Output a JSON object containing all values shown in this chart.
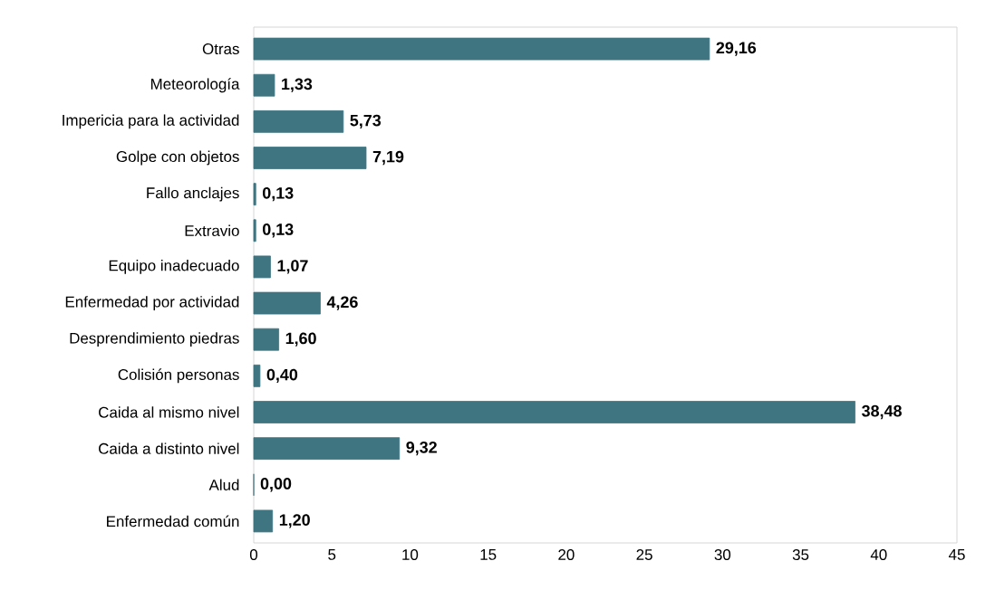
{
  "chart_data": {
    "type": "bar",
    "orientation": "horizontal",
    "categories": [
      "Otras",
      "Meteorología",
      "Impericia para la actividad",
      "Golpe con objetos",
      "Fallo anclajes",
      "Extravio",
      "Equipo inadecuado",
      "Enfermedad por actividad",
      "Desprendimiento piedras",
      "Colisión personas",
      "Caida al mismo nivel",
      "Caida a distinto nivel",
      "Alud",
      "Enfermedad común"
    ],
    "values": [
      29.16,
      1.33,
      5.73,
      7.19,
      0.13,
      0.13,
      1.07,
      4.26,
      1.6,
      0.4,
      38.48,
      9.32,
      0.0,
      1.2
    ],
    "value_labels": [
      "29,16",
      "1,33",
      "5,73",
      "7,19",
      "0,13",
      "0,13",
      "1,07",
      "4,26",
      "1,60",
      "0,40",
      "38,48",
      "9,32",
      "0,00",
      "1,20"
    ],
    "color": "#3f7581",
    "xlim": [
      0,
      45
    ],
    "xticks": [
      0,
      5,
      10,
      15,
      20,
      25,
      30,
      35,
      40,
      45
    ]
  }
}
